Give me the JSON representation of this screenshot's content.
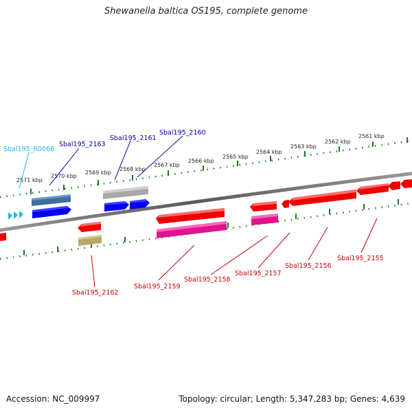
{
  "title": "Shewanella baltica OS195, complete genome",
  "footer": {
    "accession": "Accession: NC_009997",
    "summary": "Topology: circular; Length: 5,347,283 bp; Genes: 4,639"
  },
  "ticks": [
    "2571 kbp",
    "2570 kbp",
    "2569 kbp",
    "2568 kbp",
    "2567 kbp",
    "2566 kbp",
    "2565 kbp",
    "2564 kbp",
    "2563 kbp",
    "2562 kbp",
    "2561 kbp"
  ],
  "labels": {
    "r0066": "Sbal195_R0066",
    "g2163": "Sbal195_2163",
    "g2161": "Sbal195_2161",
    "g2160": "Sbal195_2160",
    "g2162": "Sbal195_2162",
    "g2159": "Sbal195_2159",
    "g2158": "Sbal195_2158",
    "g2157": "Sbal195_2157",
    "g2156": "Sbal195_2156",
    "g2155": "Sbal195_2155"
  },
  "colors": {
    "rna": "#1fb8e0",
    "forward_label": "#0000aa",
    "reverse_label": "#cc0000",
    "tick": "#1a7a1a",
    "backbone": "#777777"
  }
}
